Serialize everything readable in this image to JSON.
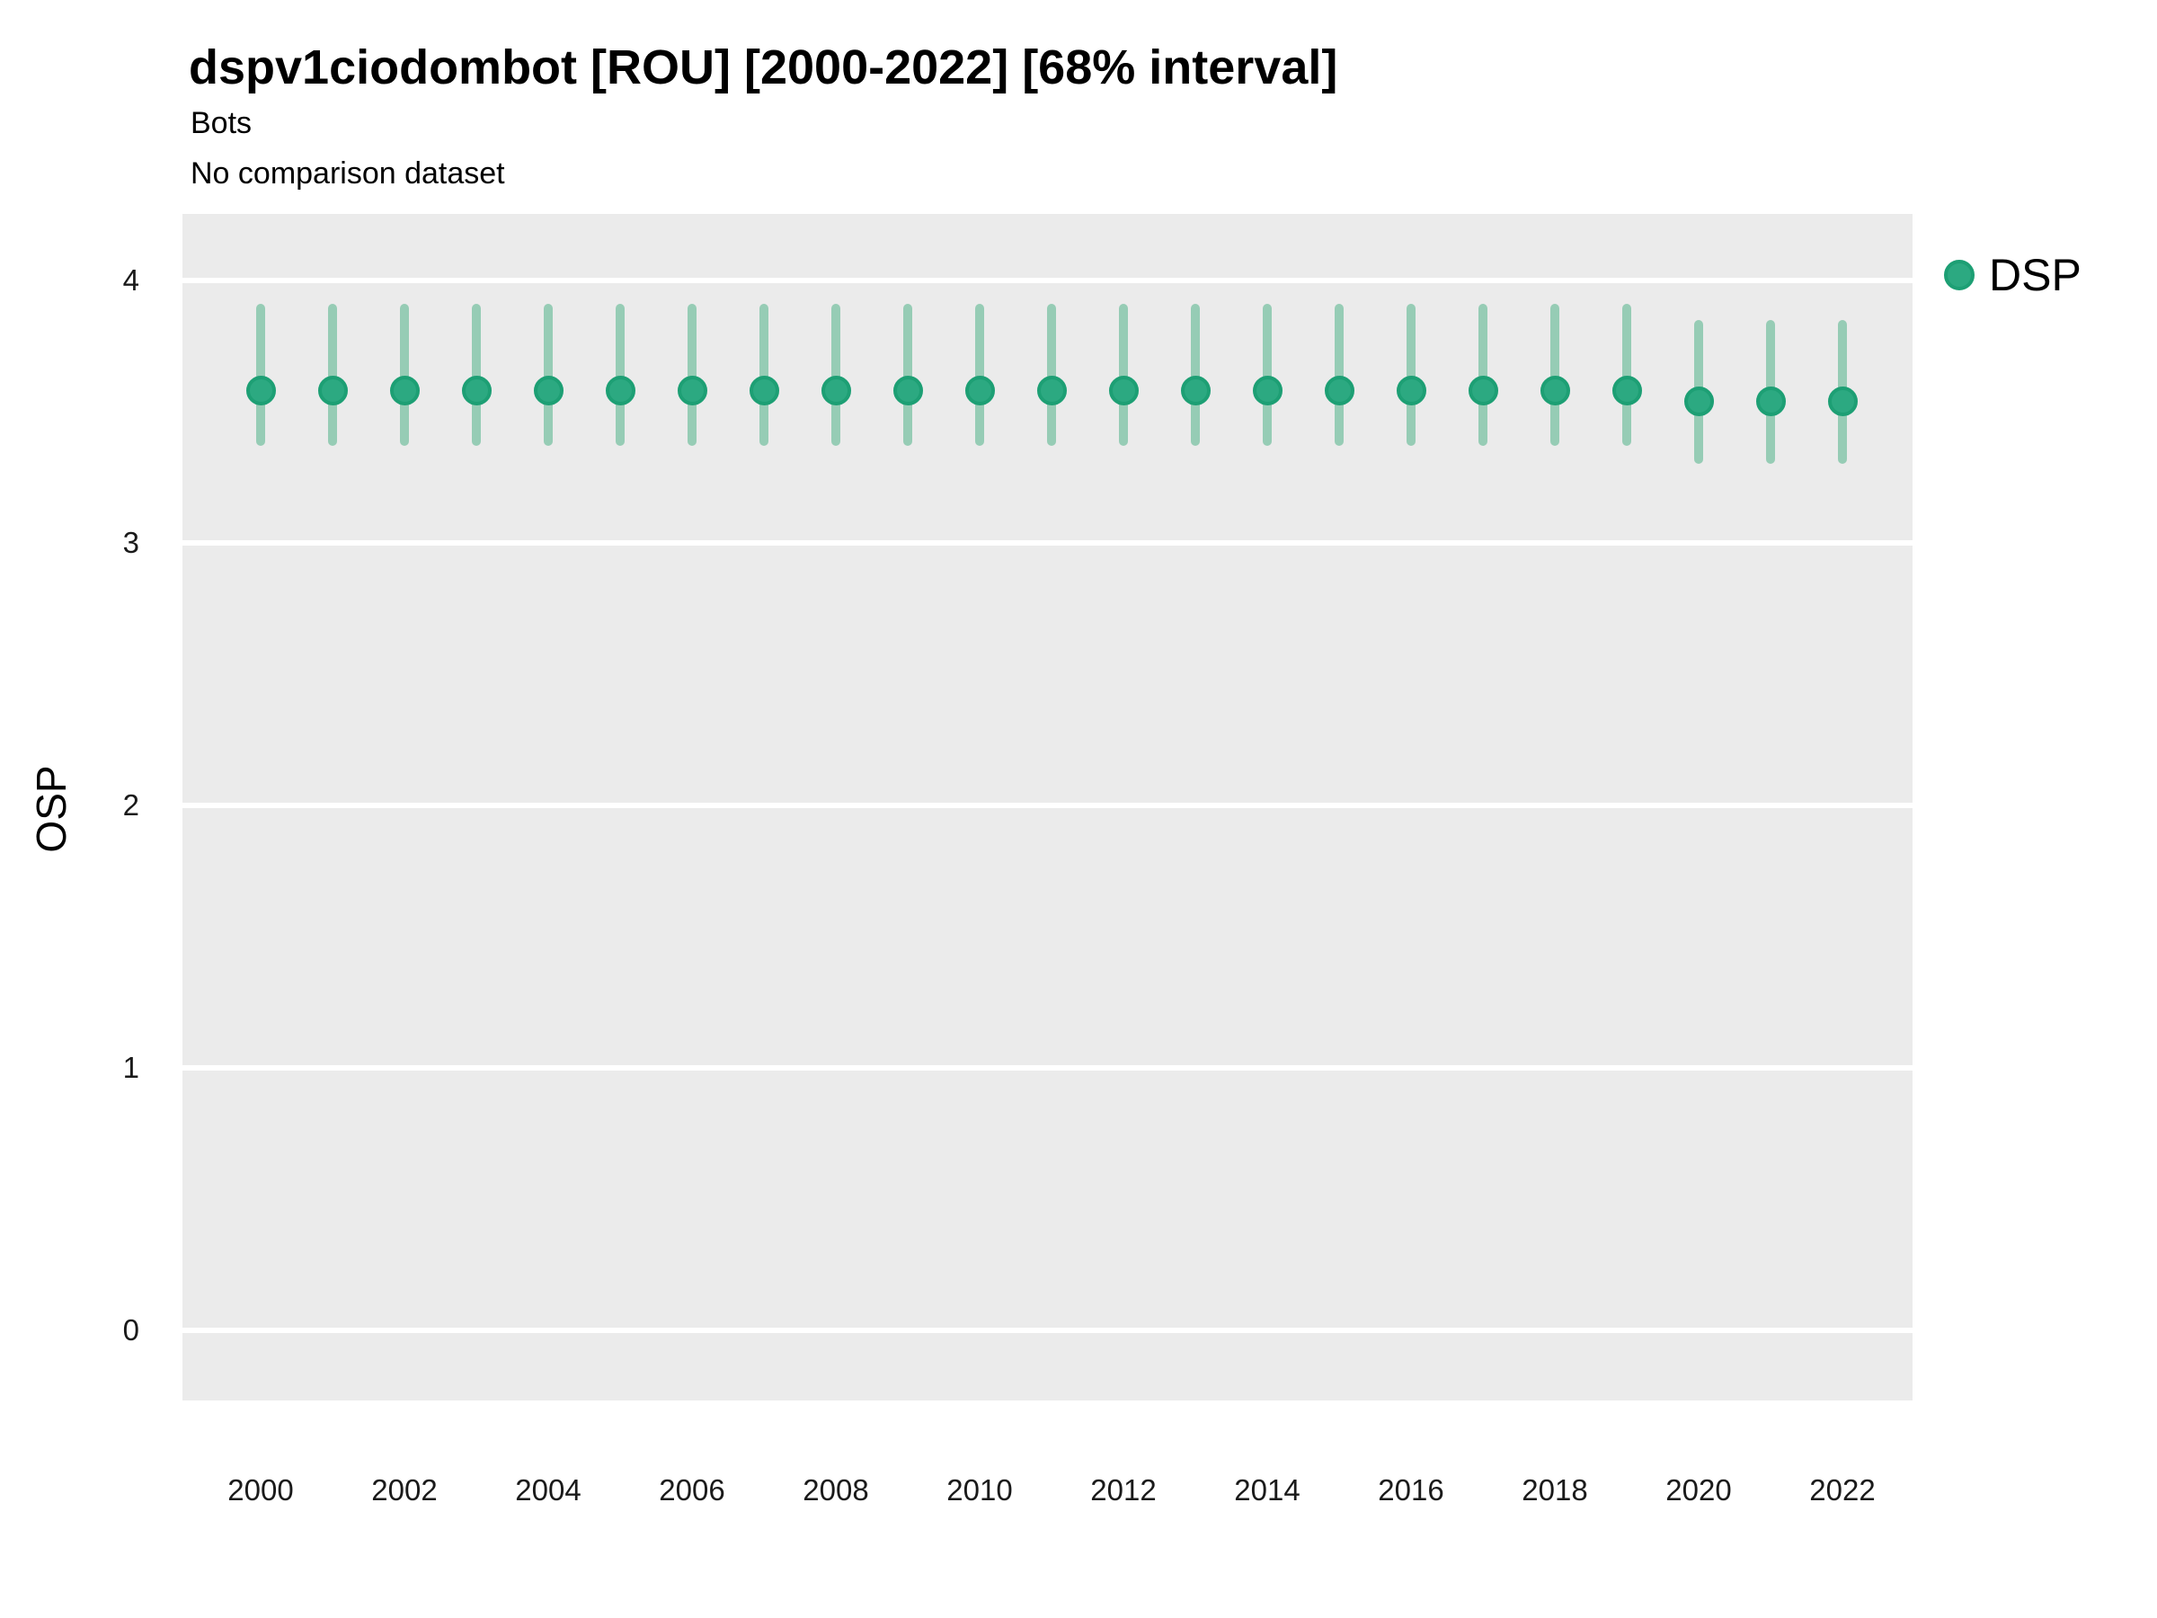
{
  "header": {
    "title": "dspv1ciodombot [ROU] [2000-2022] [68% interval]",
    "subtitle": "Bots",
    "comparison_note": "No comparison dataset"
  },
  "legend": {
    "position": "right-top",
    "items": [
      {
        "label": "DSP",
        "marker": "circle-icon",
        "color": "#2ca981"
      }
    ]
  },
  "colors": {
    "background": "#ffffff",
    "panel_bg": "#ebebeb",
    "gridline": "#ffffff",
    "point_fill": "#2ca981",
    "point_stroke": "#1d9f74",
    "interval_bar": "#96ccb5",
    "title_text": "#000000",
    "tick_text": "#1a1a1a"
  },
  "chart_data": {
    "type": "scatter",
    "subtype": "pointrange",
    "title": "dspv1ciodombot [ROU] [2000-2022] [68% interval]",
    "subtitle": "Bots",
    "note": "No comparison dataset",
    "xlabel": "",
    "ylabel": "OSP",
    "interval_level": "68%",
    "ylim": [
      -0.27,
      4.26
    ],
    "yticks": [
      0,
      1,
      2,
      3,
      4
    ],
    "xticks": [
      2000,
      2002,
      2004,
      2006,
      2008,
      2010,
      2012,
      2014,
      2016,
      2018,
      2020,
      2022
    ],
    "grid": "major-horizontal-only",
    "x": [
      2000,
      2001,
      2002,
      2003,
      2004,
      2005,
      2006,
      2007,
      2008,
      2009,
      2010,
      2011,
      2012,
      2013,
      2014,
      2015,
      2016,
      2017,
      2018,
      2019,
      2020,
      2021,
      2022
    ],
    "series": [
      {
        "name": "DSP",
        "values": [
          3.58,
          3.58,
          3.58,
          3.58,
          3.58,
          3.58,
          3.58,
          3.58,
          3.58,
          3.58,
          3.58,
          3.58,
          3.58,
          3.58,
          3.58,
          3.58,
          3.58,
          3.58,
          3.58,
          3.58,
          3.54,
          3.54,
          3.54
        ],
        "lower": [
          3.37,
          3.37,
          3.37,
          3.37,
          3.37,
          3.37,
          3.37,
          3.37,
          3.37,
          3.37,
          3.37,
          3.37,
          3.37,
          3.37,
          3.37,
          3.37,
          3.37,
          3.37,
          3.37,
          3.37,
          3.3,
          3.3,
          3.3
        ],
        "upper": [
          3.91,
          3.91,
          3.91,
          3.91,
          3.91,
          3.91,
          3.91,
          3.91,
          3.91,
          3.91,
          3.91,
          3.91,
          3.91,
          3.91,
          3.91,
          3.91,
          3.91,
          3.91,
          3.91,
          3.91,
          3.85,
          3.85,
          3.85
        ]
      }
    ]
  }
}
